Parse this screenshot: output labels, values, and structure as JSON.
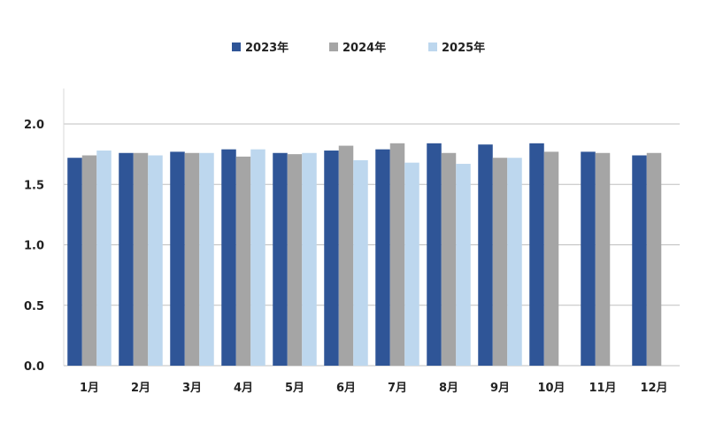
{
  "chart_data": {
    "type": "bar",
    "categories": [
      "1月",
      "2月",
      "3月",
      "4月",
      "5月",
      "6月",
      "7月",
      "8月",
      "9月",
      "10月",
      "11月",
      "12月"
    ],
    "series": [
      {
        "name": "2023年",
        "color": "#2f5597",
        "values": [
          1.72,
          1.76,
          1.77,
          1.79,
          1.76,
          1.78,
          1.79,
          1.84,
          1.83,
          1.84,
          1.77,
          1.74
        ]
      },
      {
        "name": "2024年",
        "color": "#a5a5a5",
        "values": [
          1.74,
          1.76,
          1.76,
          1.73,
          1.75,
          1.82,
          1.84,
          1.76,
          1.72,
          1.77,
          1.76,
          1.76
        ]
      },
      {
        "name": "2025年",
        "color": "#bdd7ee",
        "values": [
          1.78,
          1.74,
          1.76,
          1.79,
          1.76,
          1.7,
          1.68,
          1.67,
          1.72,
          null,
          null,
          null
        ]
      }
    ],
    "ylim": [
      0,
      2.0
    ],
    "yticks": [
      "0.0",
      "0.5",
      "1.0",
      "1.5",
      "2.0"
    ],
    "grid": true,
    "legend_position": "top-center",
    "title": "",
    "xlabel": "",
    "ylabel": ""
  }
}
